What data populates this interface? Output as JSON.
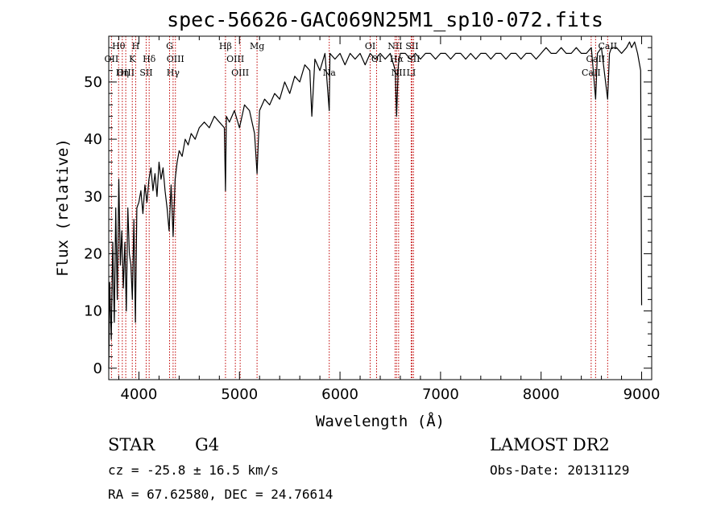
{
  "chart_data": {
    "type": "line",
    "title": "spec-56626-GAC069N25M1_sp10-072.fits",
    "xlabel": "Wavelength (Å)",
    "ylabel": "Flux (relative)",
    "xlim": [
      3700,
      9100
    ],
    "ylim": [
      -2,
      58
    ],
    "xticks": [
      4000,
      5000,
      6000,
      7000,
      8000,
      9000
    ],
    "yticks": [
      0,
      10,
      20,
      30,
      40,
      50
    ],
    "x_minor_step": 200,
    "y_minor_step": 2,
    "grid": false,
    "series": [
      {
        "x": [
          3700,
          3710,
          3725,
          3740,
          3755,
          3770,
          3785,
          3800,
          3815,
          3830,
          3845,
          3860,
          3875,
          3890,
          3905,
          3920,
          3935,
          3950,
          3965,
          3980,
          4000,
          4020,
          4040,
          4060,
          4080,
          4100,
          4120,
          4140,
          4160,
          4180,
          4200,
          4220,
          4240,
          4260,
          4280,
          4300,
          4320,
          4340,
          4360,
          4380,
          4400,
          4430,
          4460,
          4490,
          4520,
          4560,
          4600,
          4650,
          4700,
          4750,
          4800,
          4850,
          4861,
          4870,
          4900,
          4950,
          5000,
          5050,
          5100,
          5150,
          5175,
          5200,
          5250,
          5300,
          5350,
          5400,
          5450,
          5500,
          5550,
          5600,
          5650,
          5700,
          5720,
          5750,
          5800,
          5850,
          5893,
          5900,
          5950,
          6000,
          6050,
          6100,
          6150,
          6200,
          6250,
          6300,
          6350,
          6400,
          6450,
          6500,
          6550,
          6563,
          6580,
          6600,
          6650,
          6700,
          6750,
          6800,
          6850,
          6900,
          6950,
          7000,
          7050,
          7100,
          7150,
          7200,
          7250,
          7300,
          7350,
          7400,
          7450,
          7500,
          7550,
          7600,
          7650,
          7700,
          7750,
          7800,
          7850,
          7900,
          7950,
          8000,
          8050,
          8100,
          8150,
          8200,
          8250,
          8300,
          8350,
          8400,
          8450,
          8500,
          8542,
          8560,
          8600,
          8662,
          8680,
          8700,
          8750,
          8800,
          8850,
          8880,
          8900,
          8930,
          8960,
          8990,
          9000
        ],
        "y": [
          0,
          15,
          5,
          22,
          8,
          28,
          12,
          33,
          18,
          24,
          14,
          22,
          10,
          28,
          20,
          18,
          12,
          26,
          8,
          28,
          29,
          31,
          27,
          32,
          29,
          33,
          35,
          31,
          34,
          30,
          36,
          33,
          35,
          31,
          28,
          24,
          32,
          23,
          33,
          36,
          38,
          37,
          40,
          39,
          41,
          40,
          42,
          43,
          42,
          44,
          43,
          42,
          31,
          44,
          43,
          45,
          42,
          46,
          45,
          41,
          34,
          45,
          47,
          46,
          48,
          47,
          50,
          48,
          51,
          50,
          53,
          52,
          44,
          54,
          52,
          55,
          45,
          55,
          54,
          55,
          53,
          55,
          54,
          55,
          53,
          55,
          54,
          55,
          54,
          55,
          52,
          44,
          53,
          55,
          55,
          54,
          55,
          54,
          55,
          55,
          54,
          55,
          55,
          54,
          55,
          55,
          54,
          55,
          54,
          55,
          55,
          54,
          55,
          55,
          54,
          55,
          55,
          54,
          55,
          55,
          54,
          55,
          56,
          55,
          55,
          56,
          55,
          55,
          56,
          55,
          55,
          56,
          47,
          55,
          56,
          47,
          55,
          56,
          56,
          55,
          56,
          57,
          56,
          57,
          55,
          52,
          11
        ]
      }
    ],
    "line_markers": [
      {
        "label": "Hθ",
        "x": 3798,
        "row": 0
      },
      {
        "label": "OII",
        "x": 3727,
        "row": 1
      },
      {
        "label": "OIII",
        "x": 3869,
        "row": 2
      },
      {
        "label": "Hη",
        "x": 3835,
        "row": 2
      },
      {
        "label": "H",
        "x": 3968,
        "row": 0
      },
      {
        "label": "K",
        "x": 3934,
        "row": 1
      },
      {
        "label": "Hδ",
        "x": 4102,
        "row": 1
      },
      {
        "label": "SII",
        "x": 4072,
        "row": 2
      },
      {
        "label": "G",
        "x": 4305,
        "row": 0
      },
      {
        "label": "OIII",
        "x": 4363,
        "row": 1
      },
      {
        "label": "Hγ",
        "x": 4340,
        "row": 2
      },
      {
        "label": "Hβ",
        "x": 4861,
        "row": 0
      },
      {
        "label": "OIII",
        "x": 4959,
        "row": 1
      },
      {
        "label": "OIII",
        "x": 5007,
        "row": 2
      },
      {
        "label": "Mg",
        "x": 5175,
        "row": 0
      },
      {
        "label": "Na",
        "x": 5893,
        "row": 2
      },
      {
        "label": "OI",
        "x": 6300,
        "row": 0
      },
      {
        "label": "OI",
        "x": 6364,
        "row": 1
      },
      {
        "label": "NII",
        "x": 6548,
        "row": 0
      },
      {
        "label": "Hα",
        "x": 6563,
        "row": 1
      },
      {
        "label": "NII",
        "x": 6583,
        "row": 2
      },
      {
        "label": "SII",
        "x": 6716,
        "row": 0
      },
      {
        "label": "SII",
        "x": 6731,
        "row": 1
      },
      {
        "label": "LI",
        "x": 6708,
        "row": 2
      },
      {
        "label": "CaII",
        "x": 8498,
        "row": 2
      },
      {
        "label": "CaII",
        "x": 8542,
        "row": 1
      },
      {
        "label": "CaII",
        "x": 8662,
        "row": 0
      }
    ]
  },
  "info": {
    "class": "STAR",
    "subclass": "G4",
    "survey": "LAMOST DR2",
    "cz": "cz = -25.8 ± 16.5 km/s",
    "obs_date": "Obs-Date: 20131129",
    "coords": "RA =  67.62580, DEC =  24.76614"
  }
}
